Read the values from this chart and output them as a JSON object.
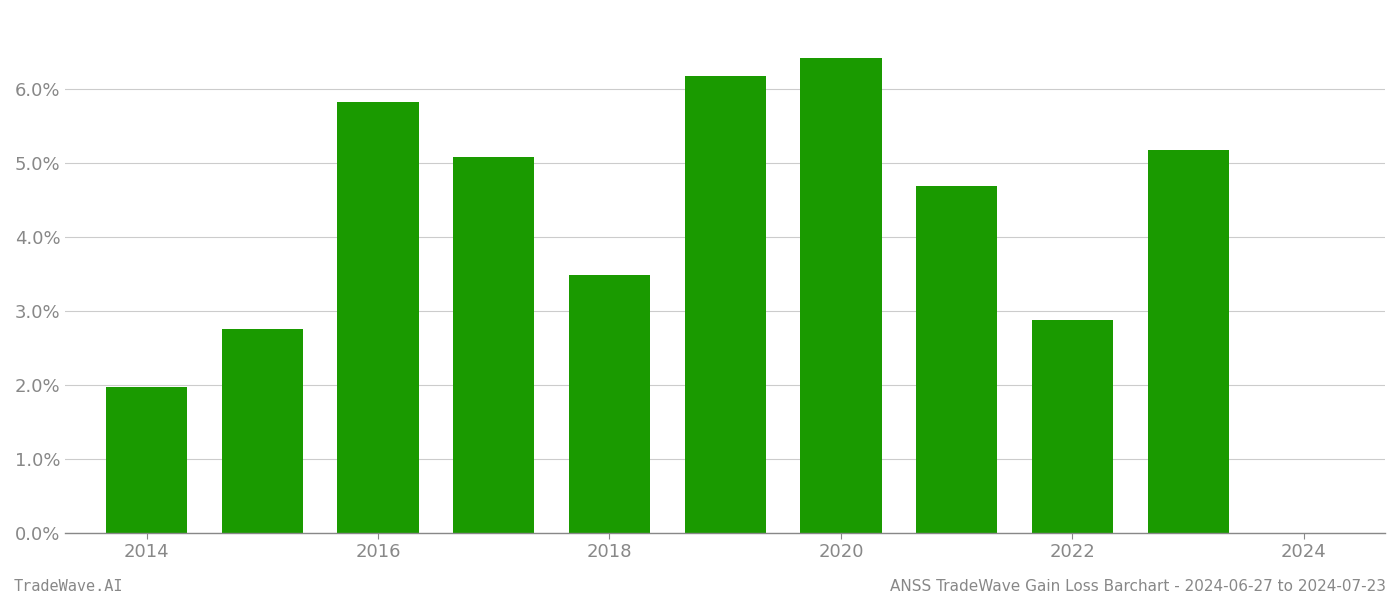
{
  "years": [
    2014,
    2015,
    2016,
    2017,
    2018,
    2019,
    2020,
    2021,
    2022,
    2023
  ],
  "values": [
    0.0197,
    0.0275,
    0.0582,
    0.0508,
    0.0349,
    0.0618,
    0.0642,
    0.0469,
    0.0288,
    0.0517
  ],
  "bar_color": "#1a9a00",
  "background_color": "#ffffff",
  "grid_color": "#cccccc",
  "tick_color": "#888888",
  "ylim": [
    0,
    0.07
  ],
  "yticks": [
    0.0,
    0.01,
    0.02,
    0.03,
    0.04,
    0.05,
    0.06
  ],
  "xticks": [
    2014,
    2016,
    2018,
    2020,
    2022,
    2024
  ],
  "xlim": [
    2013.3,
    2024.7
  ],
  "footer_left": "TradeWave.AI",
  "footer_right": "ANSS TradeWave Gain Loss Barchart - 2024-06-27 to 2024-07-23",
  "footer_fontsize": 11,
  "tick_fontsize": 13,
  "bar_width": 0.7
}
